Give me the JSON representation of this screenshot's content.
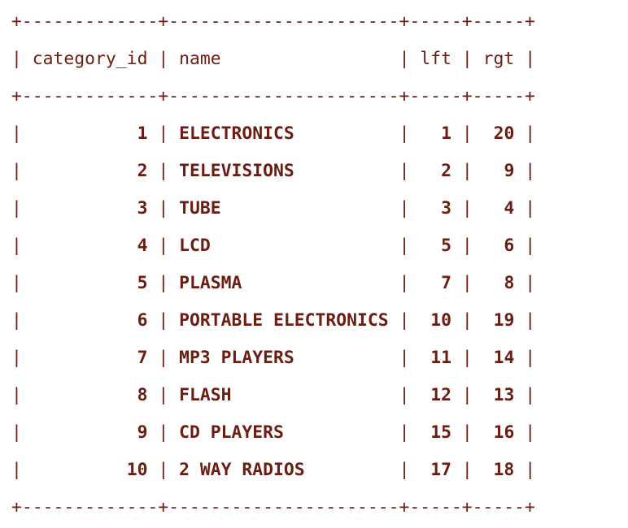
{
  "columns": [
    {
      "name": "category_id",
      "width": 13,
      "align": "right"
    },
    {
      "name": "name",
      "width": 22,
      "align": "left"
    },
    {
      "name": "lft",
      "width": 5,
      "align": "right"
    },
    {
      "name": "rgt",
      "width": 5,
      "align": "right"
    }
  ],
  "rows": [
    [
      "1",
      "ELECTRONICS",
      "1",
      "20"
    ],
    [
      "2",
      "TELEVISIONS",
      "2",
      "9"
    ],
    [
      "3",
      "TUBE",
      "3",
      "4"
    ],
    [
      "4",
      "LCD",
      "5",
      "6"
    ],
    [
      "5",
      "PLASMA",
      "7",
      "8"
    ],
    [
      "6",
      "PORTABLE ELECTRONICS",
      "10",
      "19"
    ],
    [
      "7",
      "MP3 PLAYERS",
      "11",
      "14"
    ],
    [
      "8",
      "FLASH",
      "12",
      "13"
    ],
    [
      "9",
      "CD PLAYERS",
      "15",
      "16"
    ],
    [
      "10",
      "2 WAY RADIOS",
      "17",
      "18"
    ]
  ],
  "text_color": "#6b1d12",
  "background": "#ffffff"
}
